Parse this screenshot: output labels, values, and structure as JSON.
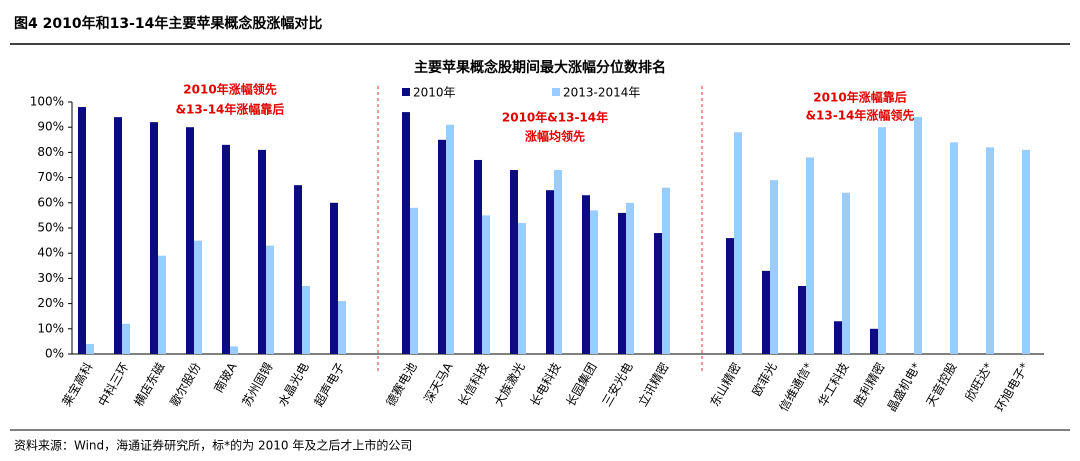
{
  "chart_data": {
    "type": "bar",
    "header": "图4  2010年和13-14年主要苹果概念股涨幅对比",
    "title": "主要苹果概念股期间最大涨幅分位数排名",
    "source": "资料来源：Wind，海通证券研究所，标*的为 2010 年及之后才上市的公司",
    "annotations": [
      "2010年涨幅领先",
      "&13-14年涨幅靠后",
      "2010年&13-14年",
      "涨幅均领先",
      "2010年涨幅靠后",
      "&13-14年涨幅领先"
    ],
    "categories": [
      "莱宝高科",
      "中科三环",
      "横店东磁",
      "歌尔股份",
      "南玻A",
      "苏州固锝",
      "水晶光电",
      "超声电子",
      null,
      "德赛电池",
      "深天马A",
      "长信科技",
      "大族激光",
      "长电科技",
      "长园集团",
      "三安光电",
      "立讯精密",
      null,
      "东山精密",
      "欧菲光",
      "信维通信*",
      "华工科技",
      "胜利精密",
      "晶盛机电*",
      "天音控股",
      "欣旺达*",
      "环旭电子*"
    ],
    "series": [
      {
        "name": "2010年",
        "color": "#0c0c80",
        "values": [
          98,
          94,
          92,
          90,
          83,
          81,
          67,
          60,
          null,
          96,
          85,
          77,
          73,
          65,
          63,
          56,
          48,
          null,
          46,
          33,
          27,
          13,
          10,
          null,
          null,
          null,
          null
        ]
      },
      {
        "name": "2013-2014年",
        "color": "#99ccff",
        "values": [
          4,
          12,
          39,
          45,
          3,
          43,
          27,
          21,
          null,
          58,
          91,
          55,
          52,
          73,
          57,
          60,
          66,
          null,
          88,
          69,
          78,
          64,
          90,
          94,
          84,
          82,
          81
        ]
      }
    ],
    "ylim": [
      0,
      100
    ],
    "yticks": [
      {
        "value": 0,
        "label": "0%"
      },
      {
        "value": 10,
        "label": "10%"
      },
      {
        "value": 20,
        "label": "20%"
      },
      {
        "value": 30,
        "label": "30%"
      },
      {
        "value": 40,
        "label": "40%"
      },
      {
        "value": 50,
        "label": "50%"
      },
      {
        "value": 60,
        "label": "60%"
      },
      {
        "value": 70,
        "label": "70%"
      },
      {
        "value": 80,
        "label": "80%"
      },
      {
        "value": 90,
        "label": "90%"
      },
      {
        "value": 100,
        "label": "100%"
      }
    ]
  }
}
